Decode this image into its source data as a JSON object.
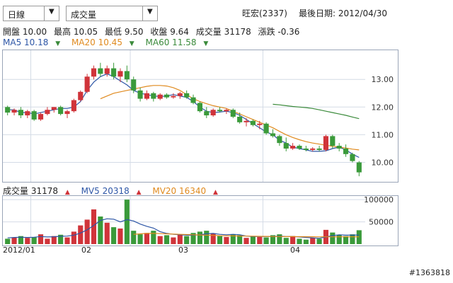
{
  "controls": {
    "period": "日線",
    "indicator": "成交量",
    "dropdown_arrow": "▼"
  },
  "header": {
    "stock": "旺宏(2337)",
    "last_date_label": "最後日期: 2012/04/30"
  },
  "quote": {
    "open": "開盤 10.00",
    "high": "最高 10.05",
    "low": "最低 9.50",
    "close": "收盤 9.64",
    "volume": "成交量 31178",
    "change": "漲跌 -0.36"
  },
  "ma_legend": {
    "ma5": "MA5 10.18",
    "ma20": "MA20 10.45",
    "ma60": "MA60 11.58",
    "arrow": "▼"
  },
  "vol_legend": {
    "vol": "成交量 31178",
    "mv5": "MV5 20318",
    "mv20": "MV20 16340",
    "arrow": "▲"
  },
  "x_ticks": [
    "2012/01",
    "02",
    "03",
    "04"
  ],
  "watermark": "#1363818",
  "colors": {
    "up": "#d0343a",
    "down": "#3a9a3a",
    "ma5": "#2d56a6",
    "ma20": "#e08a1e",
    "ma60": "#3a8a3a",
    "grid": "#d4dbe6"
  },
  "chart_data": [
    {
      "type": "candlestick",
      "y_ticks": [
        "13.00",
        "12.00",
        "11.00",
        "10.00"
      ],
      "y_tick_values": [
        13.0,
        12.0,
        11.0,
        10.0
      ],
      "ylim": [
        9.4,
        13.9
      ],
      "series": [
        {
          "name": "MA5",
          "values": [
            11.9,
            11.9,
            11.8,
            11.8,
            11.75,
            11.8,
            11.85,
            11.9,
            11.95,
            11.95,
            12.0,
            12.2,
            12.6,
            12.9,
            13.1,
            13.2,
            13.1,
            12.95,
            12.8,
            12.6,
            12.5,
            12.45,
            12.4,
            12.38,
            12.4,
            12.45,
            12.4,
            12.35,
            12.2,
            12.0,
            11.85,
            11.8,
            11.82,
            11.85,
            11.8,
            11.7,
            11.55,
            11.4,
            11.25,
            11.1,
            11.0,
            10.8,
            10.7,
            10.55,
            10.5,
            10.45,
            10.4,
            10.4,
            10.42,
            10.5,
            10.55,
            10.45,
            10.3,
            10.18
          ]
        },
        {
          "name": "MA20",
          "values": [
            null,
            null,
            null,
            null,
            null,
            null,
            null,
            null,
            null,
            null,
            null,
            null,
            null,
            null,
            12.3,
            12.4,
            12.5,
            12.55,
            12.6,
            12.65,
            12.7,
            12.75,
            12.78,
            12.78,
            12.76,
            12.7,
            12.6,
            12.45,
            12.3,
            12.2,
            12.12,
            12.05,
            12.0,
            11.95,
            11.85,
            11.75,
            11.65,
            11.55,
            11.45,
            11.35,
            11.25,
            11.12,
            11.0,
            10.9,
            10.82,
            10.75,
            10.7,
            10.66,
            10.62,
            10.58,
            10.55,
            10.52,
            10.48,
            10.45
          ]
        },
        {
          "name": "MA60",
          "values": [
            null,
            null,
            null,
            null,
            null,
            null,
            null,
            null,
            null,
            null,
            null,
            null,
            null,
            null,
            null,
            null,
            null,
            null,
            null,
            null,
            null,
            null,
            null,
            null,
            null,
            null,
            null,
            null,
            null,
            null,
            null,
            null,
            null,
            null,
            null,
            null,
            null,
            null,
            null,
            null,
            12.1,
            12.08,
            12.05,
            12.02,
            12.0,
            11.98,
            11.95,
            11.9,
            11.85,
            11.8,
            11.75,
            11.7,
            11.64,
            11.58
          ]
        }
      ],
      "ohlc": [
        [
          12.0,
          12.05,
          11.7,
          11.8
        ],
        [
          11.8,
          11.95,
          11.7,
          11.9
        ],
        [
          11.9,
          12.0,
          11.6,
          11.7
        ],
        [
          11.7,
          11.9,
          11.6,
          11.85
        ],
        [
          11.85,
          11.9,
          11.5,
          11.55
        ],
        [
          11.55,
          11.8,
          11.5,
          11.75
        ],
        [
          11.75,
          12.0,
          11.7,
          11.9
        ],
        [
          11.9,
          12.0,
          11.8,
          12.0
        ],
        [
          12.0,
          12.05,
          11.7,
          11.75
        ],
        [
          11.75,
          11.9,
          11.6,
          11.85
        ],
        [
          11.85,
          12.3,
          11.8,
          12.25
        ],
        [
          12.25,
          12.6,
          12.2,
          12.55
        ],
        [
          12.55,
          13.2,
          12.5,
          13.1
        ],
        [
          13.1,
          13.5,
          13.0,
          13.4
        ],
        [
          13.4,
          13.6,
          13.1,
          13.2
        ],
        [
          13.2,
          13.5,
          13.1,
          13.4
        ],
        [
          13.4,
          13.6,
          13.0,
          13.1
        ],
        [
          13.1,
          13.4,
          12.9,
          13.3
        ],
        [
          13.3,
          13.5,
          12.9,
          13.0
        ],
        [
          13.0,
          13.1,
          12.5,
          12.6
        ],
        [
          12.6,
          12.7,
          12.2,
          12.3
        ],
        [
          12.3,
          12.6,
          12.25,
          12.5
        ],
        [
          12.5,
          12.55,
          12.2,
          12.3
        ],
        [
          12.3,
          12.5,
          12.25,
          12.45
        ],
        [
          12.45,
          12.5,
          12.3,
          12.35
        ],
        [
          12.35,
          12.5,
          12.3,
          12.4
        ],
        [
          12.4,
          12.55,
          12.3,
          12.5
        ],
        [
          12.5,
          12.6,
          12.3,
          12.35
        ],
        [
          12.35,
          12.45,
          12.1,
          12.15
        ],
        [
          12.15,
          12.2,
          11.8,
          11.85
        ],
        [
          11.85,
          12.0,
          11.6,
          11.7
        ],
        [
          11.7,
          11.95,
          11.65,
          11.9
        ],
        [
          11.9,
          12.0,
          11.8,
          11.85
        ],
        [
          11.85,
          11.95,
          11.75,
          11.9
        ],
        [
          11.9,
          11.95,
          11.6,
          11.65
        ],
        [
          11.65,
          11.8,
          11.4,
          11.45
        ],
        [
          11.45,
          11.6,
          11.3,
          11.5
        ],
        [
          11.5,
          11.55,
          11.3,
          11.35
        ],
        [
          11.35,
          11.5,
          11.2,
          11.4
        ],
        [
          11.4,
          11.45,
          11.0,
          11.05
        ],
        [
          11.05,
          11.2,
          10.9,
          10.95
        ],
        [
          10.95,
          11.0,
          10.6,
          10.7
        ],
        [
          10.7,
          10.9,
          10.4,
          10.5
        ],
        [
          10.5,
          10.7,
          10.45,
          10.6
        ],
        [
          10.6,
          10.65,
          10.45,
          10.5
        ],
        [
          10.5,
          10.6,
          10.4,
          10.45
        ],
        [
          10.45,
          10.55,
          10.4,
          10.5
        ],
        [
          10.5,
          10.6,
          10.4,
          10.45
        ],
        [
          10.45,
          11.0,
          10.4,
          10.95
        ],
        [
          10.95,
          11.0,
          10.5,
          10.6
        ],
        [
          10.6,
          10.7,
          10.4,
          10.5
        ],
        [
          10.5,
          10.65,
          10.2,
          10.3
        ],
        [
          10.3,
          10.35,
          10.0,
          10.05
        ],
        [
          10.0,
          10.05,
          9.5,
          9.64
        ]
      ]
    },
    {
      "type": "bar",
      "y_ticks": [
        "100000",
        "50000"
      ],
      "y_tick_values": [
        100000,
        50000
      ],
      "ylim": [
        0,
        105000
      ],
      "values": [
        12000,
        15000,
        18000,
        14000,
        16000,
        22000,
        12000,
        18000,
        21000,
        15000,
        28000,
        42000,
        55000,
        78000,
        62000,
        48000,
        38000,
        35000,
        100000,
        30000,
        22000,
        25000,
        30000,
        18000,
        20000,
        15000,
        22000,
        18000,
        25000,
        28000,
        30000,
        24000,
        18000,
        16000,
        22000,
        20000,
        14000,
        18000,
        16000,
        15000,
        20000,
        22000,
        14000,
        18000,
        12000,
        10000,
        14000,
        12000,
        32000,
        26000,
        20000,
        18000,
        22000,
        31178
      ],
      "series": [
        {
          "name": "MV5",
          "values": [
            14000,
            15000,
            15500,
            15000,
            15500,
            17000,
            16000,
            16500,
            17500,
            18000,
            20000,
            25000,
            32000,
            42000,
            53000,
            57000,
            56000,
            50000,
            55000,
            52000,
            45000,
            40000,
            36000,
            28000,
            24000,
            22000,
            21000,
            20000,
            20000,
            21000,
            23000,
            24000,
            22000,
            21000,
            22000,
            21000,
            18000,
            17000,
            17000,
            17000,
            17000,
            18000,
            17000,
            17000,
            16000,
            15000,
            14000,
            13000,
            16000,
            19000,
            21000,
            20000,
            20000,
            20318
          ]
        },
        {
          "name": "MV20",
          "values": [
            null,
            null,
            null,
            null,
            null,
            null,
            null,
            null,
            null,
            null,
            null,
            null,
            null,
            null,
            null,
            null,
            null,
            null,
            null,
            22000,
            23000,
            24000,
            24000,
            23500,
            23000,
            22500,
            22000,
            21500,
            21000,
            20500,
            20000,
            19500,
            19000,
            18800,
            18500,
            18200,
            18000,
            17800,
            17500,
            17300,
            17100,
            17000,
            16900,
            16800,
            16700,
            16600,
            16500,
            16450,
            16400,
            16380,
            16360,
            16350,
            16345,
            16340
          ]
        }
      ]
    }
  ]
}
